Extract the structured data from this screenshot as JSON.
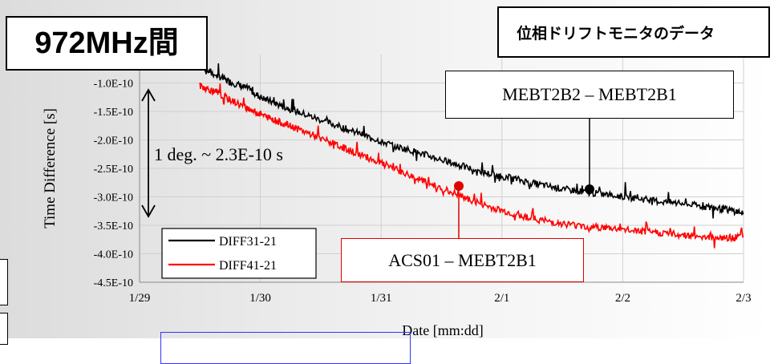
{
  "badge_text": "972MHz間",
  "title_box_text": "位相ドリフトモニタのデータ",
  "chart_data": {
    "type": "line",
    "xlabel": "Date [mm:dd]",
    "ylabel": "Time Difference [s]",
    "x_tick_labels": [
      "1/29",
      "1/30",
      "1/31",
      "2/1",
      "2/2",
      "2/3"
    ],
    "y_ticks": [
      -1e-10,
      -1.5e-10,
      -2e-10,
      -2.5e-10,
      -3e-10,
      -3.5e-10,
      -4e-10,
      -4.5e-10
    ],
    "y_tick_labels": [
      "-1.0E-10",
      "-1.5E-10",
      "-2.0E-10",
      "-2.5E-10",
      "-3.0E-10",
      "-3.5E-10",
      "-4.0E-10",
      "-4.5E-10"
    ],
    "xlim_days": [
      0,
      5
    ],
    "ylim": [
      -4.5e-10,
      -5e-11
    ],
    "grid": true,
    "legend_position": "bottom-left",
    "series": [
      {
        "name": "DIFF31-21",
        "color": "#000000",
        "x": [
          0.5,
          0.62,
          0.75,
          0.9,
          1.0,
          1.15,
          1.3,
          1.5,
          1.7,
          1.9,
          2.1,
          2.3,
          2.5,
          2.7,
          2.9,
          3.1,
          3.3,
          3.5,
          3.7,
          3.9,
          4.1,
          4.3,
          4.5,
          4.7,
          4.85,
          5.0
        ],
        "y": [
          -7e-11,
          -8.5e-11,
          -9.8e-11,
          -1.1e-10,
          -1.25e-10,
          -1.38e-10,
          -1.5e-10,
          -1.65e-10,
          -1.8e-10,
          -1.95e-10,
          -2.1e-10,
          -2.22e-10,
          -2.35e-10,
          -2.48e-10,
          -2.6e-10,
          -2.68e-10,
          -2.78e-10,
          -2.86e-10,
          -2.92e-10,
          -2.97e-10,
          -3.02e-10,
          -3.08e-10,
          -3.12e-10,
          -3.18e-10,
          -3.22e-10,
          -3.28e-10
        ]
      },
      {
        "name": "DIFF41-21",
        "color": "#ff0000",
        "x": [
          0.5,
          0.62,
          0.75,
          0.9,
          1.0,
          1.15,
          1.3,
          1.5,
          1.7,
          1.9,
          2.1,
          2.3,
          2.5,
          2.7,
          2.9,
          3.1,
          3.3,
          3.5,
          3.7,
          3.9,
          4.1,
          4.3,
          4.5,
          4.7,
          4.85,
          5.0
        ],
        "y": [
          -1.05e-10,
          -1.15e-10,
          -1.3e-10,
          -1.45e-10,
          -1.55e-10,
          -1.68e-10,
          -1.8e-10,
          -1.97e-10,
          -2.15e-10,
          -2.32e-10,
          -2.5e-10,
          -2.68e-10,
          -2.85e-10,
          -3.02e-10,
          -3.18e-10,
          -3.3e-10,
          -3.4e-10,
          -3.47e-10,
          -3.52e-10,
          -3.55e-10,
          -3.6e-10,
          -3.63e-10,
          -3.67e-10,
          -3.7e-10,
          -3.73e-10,
          -3.7e-10
        ]
      }
    ],
    "annotations": {
      "phase_note": "1 deg. ~ 2.3E-10 s",
      "black_label": "MEBT2B2 – MEBT2B1",
      "red_label": "ACS01 – MEBT2B1"
    }
  },
  "colors": {
    "background_gradient_start": "#dcdcdc",
    "background_gradient_end": "#ffffff",
    "grid": "#d0d0d0",
    "blue_frame": "#3333ff"
  }
}
